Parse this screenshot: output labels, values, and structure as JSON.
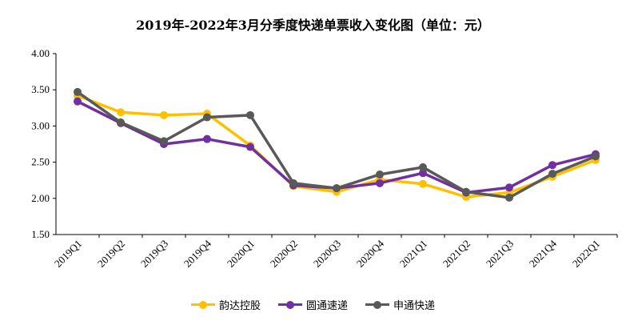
{
  "chart_data": {
    "type": "line",
    "title": "2019年-2022年3月分季度快递单票收入变化图（单位：元）",
    "categories": [
      "2019Q1",
      "2019Q2",
      "2019Q3",
      "2019Q4",
      "2020Q1",
      "2020Q2",
      "2020Q3",
      "2020Q4",
      "2021Q1",
      "2021Q2",
      "2021Q3",
      "2021Q4",
      "2022Q1"
    ],
    "ylim": [
      1.5,
      4.0
    ],
    "yticks": [
      "1.50",
      "2.00",
      "2.50",
      "3.00",
      "3.50",
      "4.00"
    ],
    "grid": false,
    "legend_position": "bottom",
    "series": [
      {
        "name": "韵达控股",
        "color": "#FFC000",
        "values": [
          3.42,
          3.19,
          3.15,
          3.17,
          2.73,
          2.17,
          2.09,
          2.26,
          2.2,
          2.02,
          2.08,
          2.3,
          2.53
        ]
      },
      {
        "name": "圆通速递",
        "color": "#7030A0",
        "values": [
          3.34,
          3.04,
          2.75,
          2.82,
          2.71,
          2.18,
          2.14,
          2.21,
          2.35,
          2.08,
          2.15,
          2.46,
          2.61
        ]
      },
      {
        "name": "申通快递",
        "color": "#595959",
        "values": [
          3.47,
          3.05,
          2.79,
          3.12,
          3.15,
          2.21,
          2.14,
          2.33,
          2.43,
          2.09,
          2.01,
          2.34,
          2.58
        ]
      }
    ]
  }
}
